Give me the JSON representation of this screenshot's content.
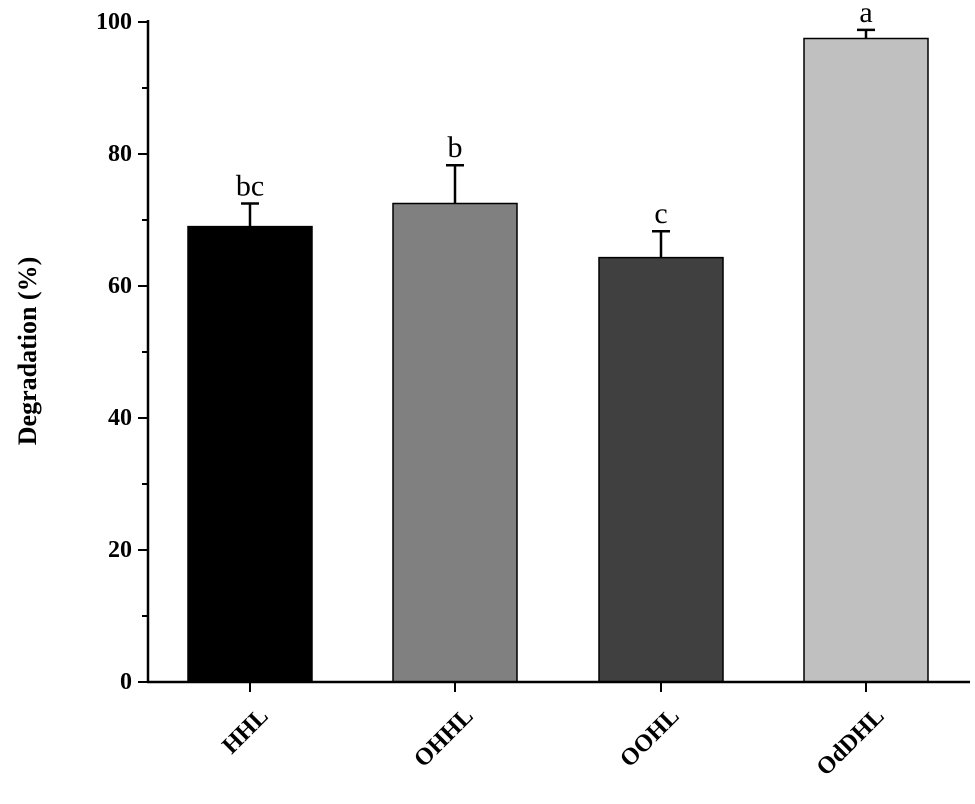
{
  "chart_data": {
    "type": "bar",
    "title": "",
    "xlabel": "",
    "ylabel": "Degradation (%)",
    "ylim": [
      0,
      100
    ],
    "yticks": [
      0,
      20,
      40,
      60,
      80,
      100
    ],
    "categories": [
      "HHL",
      "OHHL",
      "OOHL",
      "OdDHL"
    ],
    "values": [
      69.0,
      72.5,
      64.3,
      97.5
    ],
    "errors": [
      3.5,
      5.8,
      4.0,
      1.3
    ],
    "significance_labels": [
      "bc",
      "b",
      "c",
      "a"
    ],
    "colors": [
      "#000000",
      "#808080",
      "#404040",
      "#c0c0c0"
    ],
    "grid": false,
    "legend": "none"
  }
}
